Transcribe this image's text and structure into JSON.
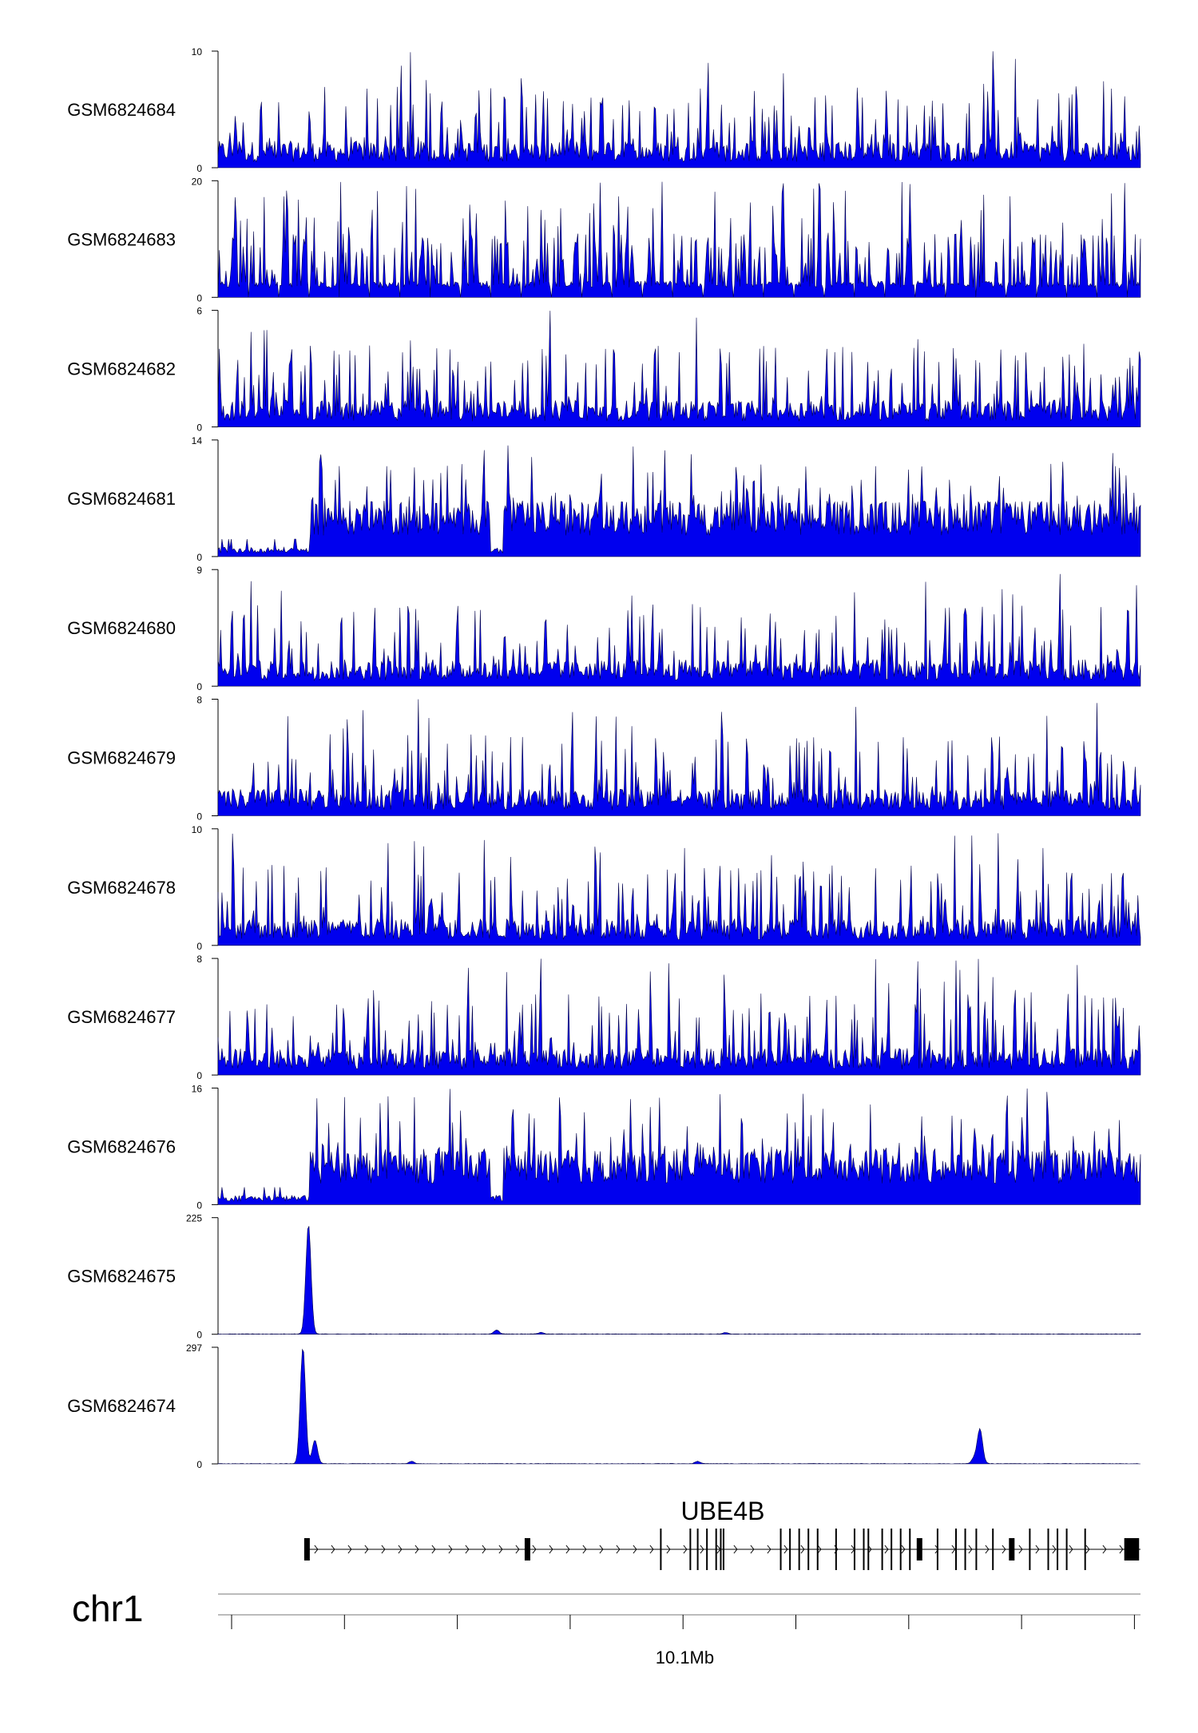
{
  "chart_data": {
    "type": "area",
    "tracks": [
      {
        "name": "GSM6824684",
        "ymax": 10,
        "ymin": 0,
        "ymax_label": "10",
        "ymin_label": "0",
        "pattern": "noise",
        "max_value": 10
      },
      {
        "name": "GSM6824683",
        "ymax": 20,
        "ymin": 0,
        "ymax_label": "20",
        "ymin_label": "0",
        "pattern": "sparse",
        "max_value": 20
      },
      {
        "name": "GSM6824682",
        "ymax": 6,
        "ymin": 0,
        "ymax_label": "6",
        "ymin_label": "0",
        "pattern": "noise",
        "max_value": 6
      },
      {
        "name": "GSM6824681",
        "ymax": 14,
        "ymin": 0,
        "ymax_label": "14",
        "ymin_label": "0",
        "pattern": "dense",
        "max_value": 14
      },
      {
        "name": "GSM6824680",
        "ymax": 9,
        "ymin": 0,
        "ymax_label": "9",
        "ymin_label": "0",
        "pattern": "noise",
        "max_value": 9
      },
      {
        "name": "GSM6824679",
        "ymax": 8,
        "ymin": 0,
        "ymax_label": "8",
        "ymin_label": "0",
        "pattern": "noise",
        "max_value": 8
      },
      {
        "name": "GSM6824678",
        "ymax": 10,
        "ymin": 0,
        "ymax_label": "10",
        "ymin_label": "0",
        "pattern": "noise",
        "max_value": 10
      },
      {
        "name": "GSM6824677",
        "ymax": 8,
        "ymin": 0,
        "ymax_label": "8",
        "ymin_label": "0",
        "pattern": "noise",
        "max_value": 8
      },
      {
        "name": "GSM6824676",
        "ymax": 16,
        "ymin": 0,
        "ymax_label": "16",
        "ymin_label": "0",
        "pattern": "dense",
        "max_value": 16
      },
      {
        "name": "GSM6824675",
        "ymax": 225,
        "ymin": 0,
        "ymax_label": "225",
        "ymin_label": "0",
        "pattern": "peak",
        "max_value": 225,
        "peaks": [
          {
            "x": 0.098,
            "value": 212
          },
          {
            "x": 0.302,
            "value": 8
          },
          {
            "x": 0.35,
            "value": 3
          },
          {
            "x": 0.55,
            "value": 3
          }
        ]
      },
      {
        "name": "GSM6824674",
        "ymax": 297,
        "ymin": 0,
        "ymax_label": "297",
        "ymin_label": "0",
        "pattern": "peak",
        "max_value": 297,
        "peaks": [
          {
            "x": 0.092,
            "value": 297
          },
          {
            "x": 0.105,
            "value": 60
          },
          {
            "x": 0.826,
            "value": 88
          },
          {
            "x": 0.82,
            "value": 15
          },
          {
            "x": 0.21,
            "value": 6
          },
          {
            "x": 0.52,
            "value": 6
          }
        ]
      }
    ],
    "gene": {
      "name": "UBE4B",
      "start": 0.096,
      "end": 1.0,
      "strand": "+",
      "exons": [
        0.096,
        0.335,
        0.48,
        0.512,
        0.52,
        0.53,
        0.54,
        0.545,
        0.548,
        0.61,
        0.62,
        0.63,
        0.64,
        0.65,
        0.67,
        0.69,
        0.7,
        0.705,
        0.72,
        0.73,
        0.74,
        0.75,
        0.76,
        0.78,
        0.8,
        0.81,
        0.822,
        0.84,
        0.86,
        0.88,
        0.9,
        0.91,
        0.92,
        0.94,
        0.985,
        0.99,
        0.995
      ]
    },
    "chromosome": "chr1",
    "x_tick_label": "10.1Mb",
    "x_tick_position": 0.506,
    "colors": {
      "signal": "#0000ee",
      "signal_outline": "#00004a",
      "axis": "#000000",
      "gene": "#000000"
    }
  }
}
